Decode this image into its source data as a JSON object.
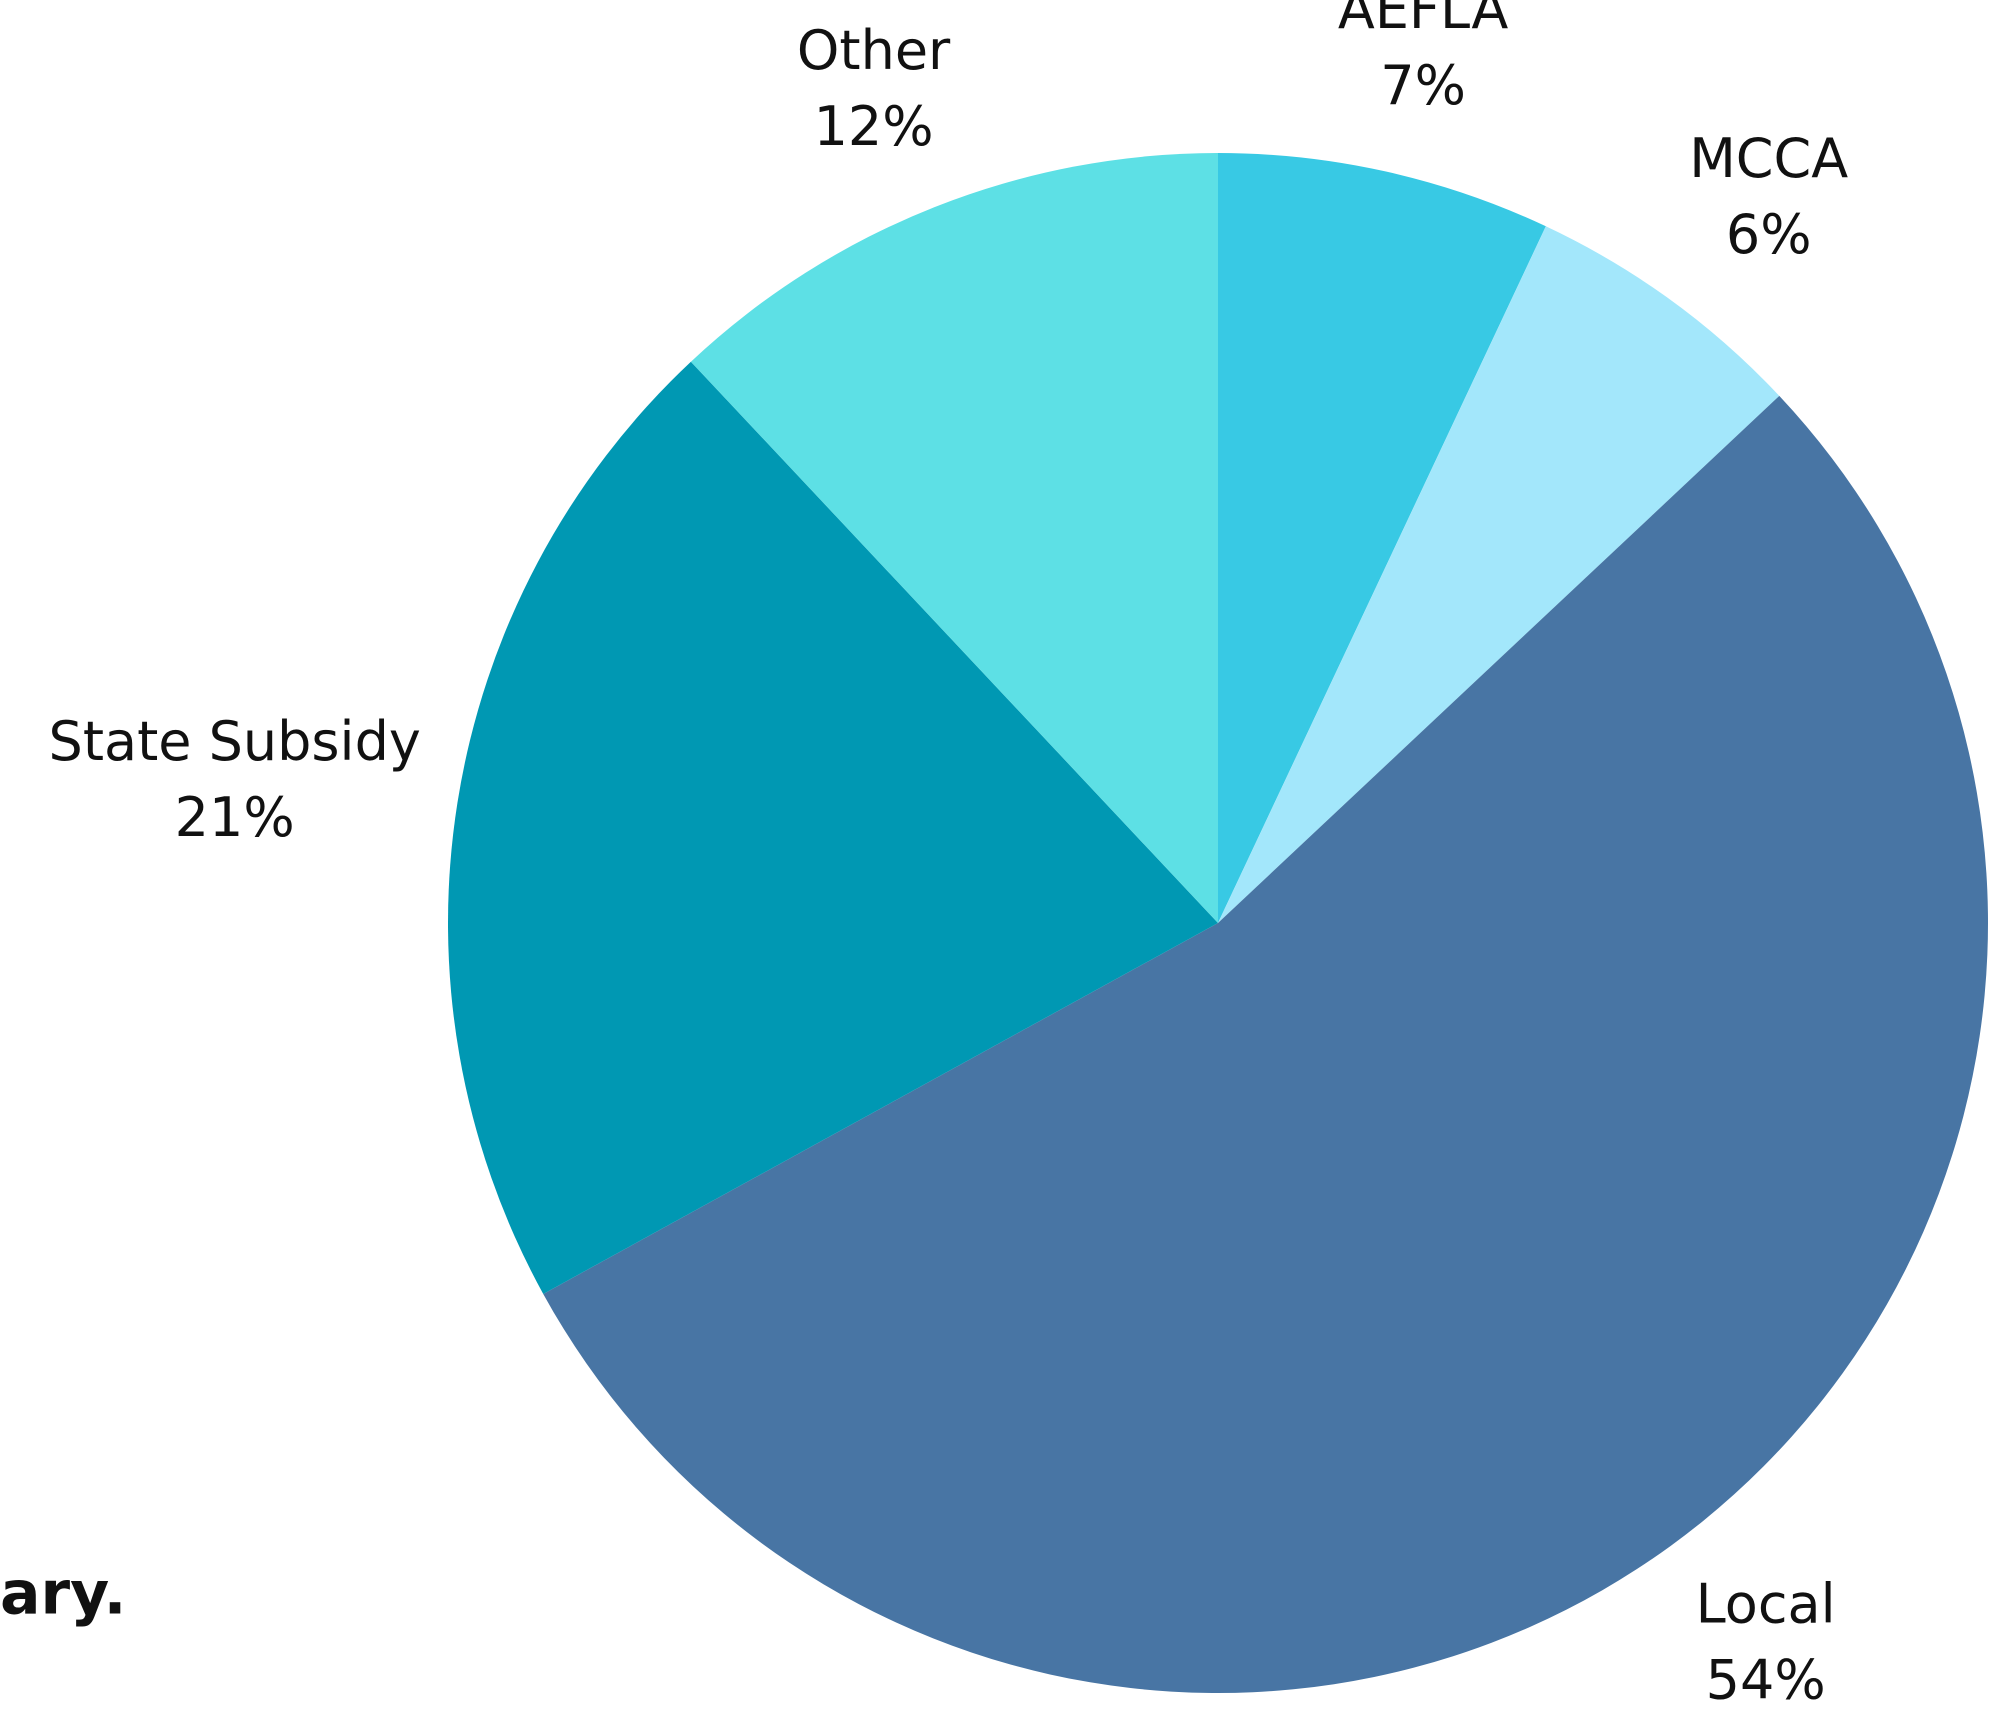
{
  "chart_data": {
    "type": "pie",
    "categories": [
      "AEFLA",
      "MCCA",
      "Local",
      "State Subsidy",
      "Other"
    ],
    "values": [
      7,
      6,
      54,
      21,
      12
    ],
    "value_labels": [
      "7%",
      "6%",
      "54%",
      "21%",
      "12%"
    ],
    "colors": [
      "#38c9e4",
      "#a3e7fb",
      "#4875a4",
      "#0098b3",
      "#5de0e5"
    ],
    "fragment_text": "ary."
  }
}
